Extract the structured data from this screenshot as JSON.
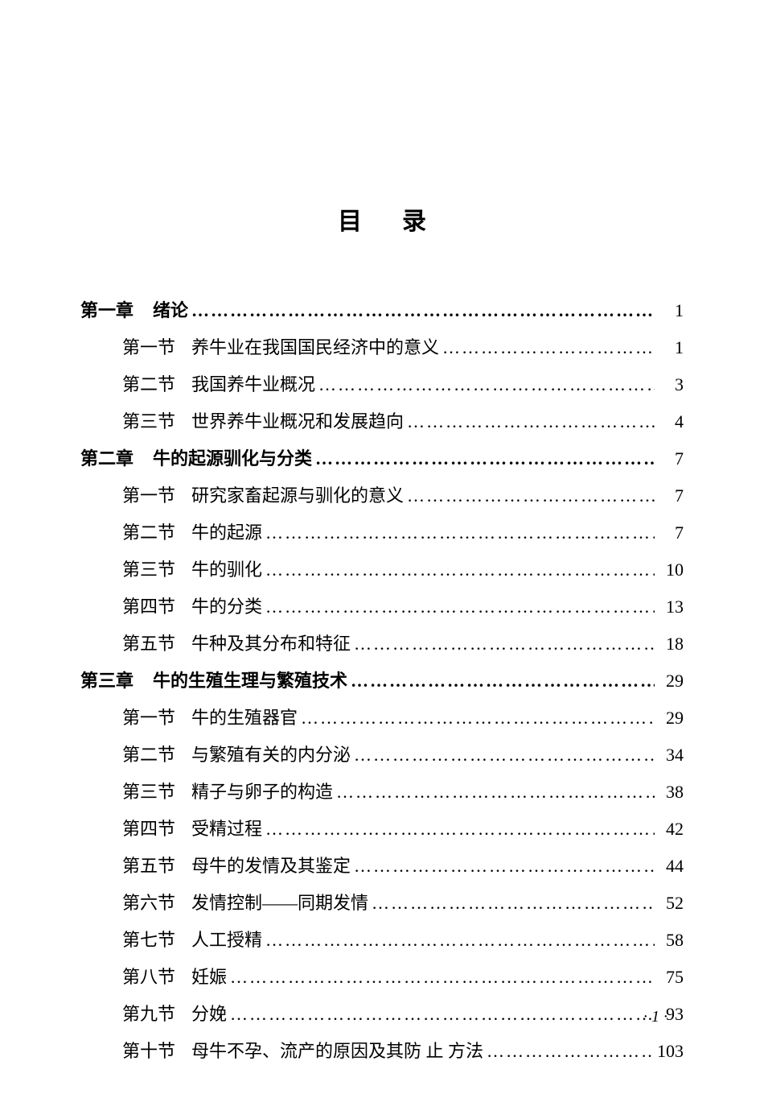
{
  "title": "目录",
  "page_footer": "· 1 ·",
  "colors": {
    "background": "#ffffff",
    "text": "#000000"
  },
  "typography": {
    "body_fontsize": 22,
    "title_fontsize": 30,
    "line_height": 2.0,
    "font_family": "SimSun"
  },
  "toc": [
    {
      "type": "chapter",
      "label": "第一章",
      "title": "绪论",
      "page": "1",
      "sections": [
        {
          "label": "第一节",
          "title": "养牛业在我国国民经济中的意义",
          "page": "1"
        },
        {
          "label": "第二节",
          "title": "我国养牛业概况",
          "page": "3"
        },
        {
          "label": "第三节",
          "title": "世界养牛业概况和发展趋向",
          "page": "4"
        }
      ]
    },
    {
      "type": "chapter",
      "label": "第二章",
      "title": "牛的起源驯化与分类",
      "page": "7",
      "sections": [
        {
          "label": "第一节",
          "title": "研究家畜起源与驯化的意义",
          "page": "7"
        },
        {
          "label": "第二节",
          "title": "牛的起源",
          "page": "7"
        },
        {
          "label": "第三节",
          "title": "牛的驯化",
          "page": "10"
        },
        {
          "label": "第四节",
          "title": "牛的分类",
          "page": "13"
        },
        {
          "label": "第五节",
          "title": "牛种及其分布和特征",
          "page": "18"
        }
      ]
    },
    {
      "type": "chapter",
      "label": "第三章",
      "title": "牛的生殖生理与繁殖技术",
      "page": "29",
      "sections": [
        {
          "label": "第一节",
          "title": "牛的生殖器官",
          "page": "29"
        },
        {
          "label": "第二节",
          "title": "与繁殖有关的内分泌",
          "page": "34"
        },
        {
          "label": "第三节",
          "title": "精子与卵子的构造",
          "page": "38"
        },
        {
          "label": "第四节",
          "title": "受精过程",
          "page": "42"
        },
        {
          "label": "第五节",
          "title": "母牛的发情及其鉴定",
          "page": "44"
        },
        {
          "label": "第六节",
          "title": "发情控制——同期发情",
          "page": "52"
        },
        {
          "label": "第七节",
          "title": "人工授精",
          "page": "58"
        },
        {
          "label": "第八节",
          "title": "妊娠",
          "page": "75"
        },
        {
          "label": "第九节",
          "title": "分娩",
          "page": "93"
        },
        {
          "label": "第十节",
          "title": "母牛不孕、流产的原因及其防 止 方法",
          "page": "103"
        }
      ]
    }
  ]
}
